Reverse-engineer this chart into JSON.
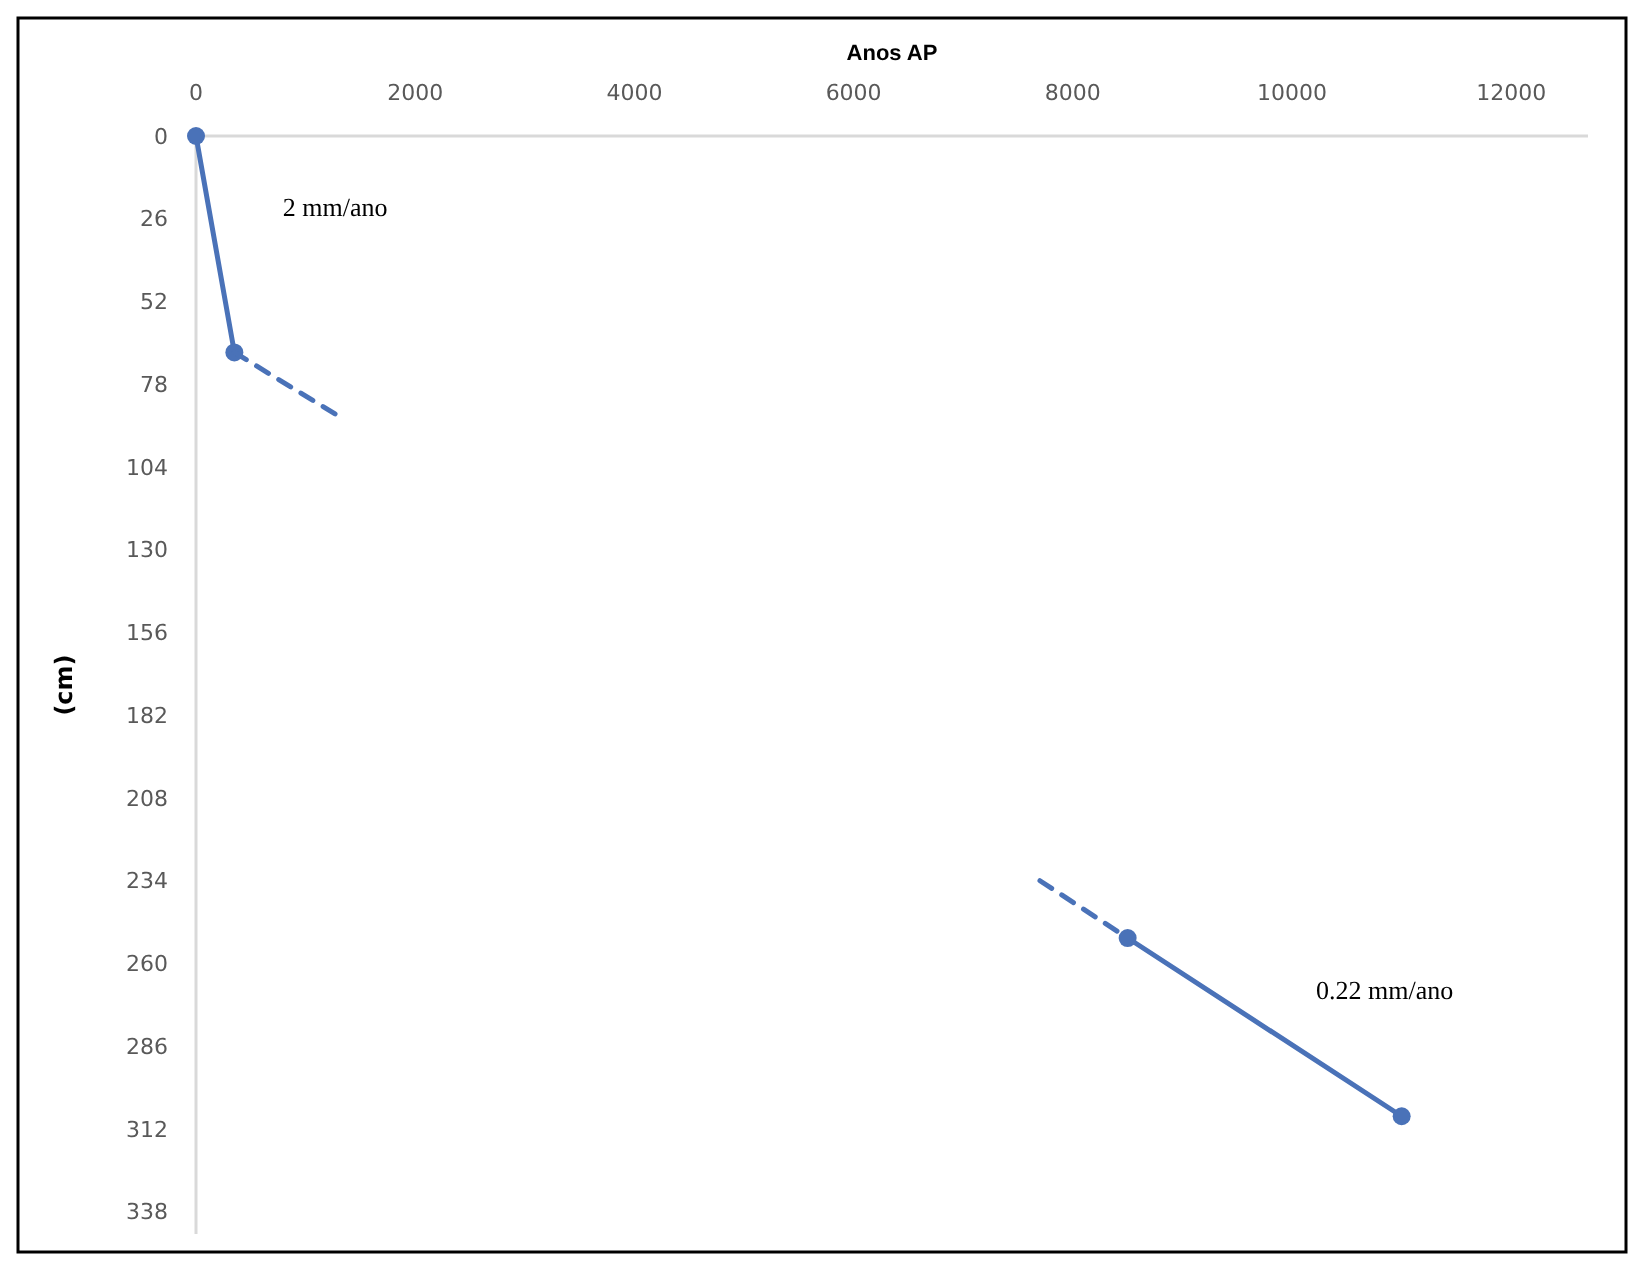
{
  "chart_data": {
    "type": "line",
    "xlabel": "Anos AP",
    "ylabel": "(cm)",
    "xlim": [
      0,
      12700
    ],
    "ylim": [
      345,
      0
    ],
    "xticks": [
      0,
      2000,
      4000,
      6000,
      8000,
      10000,
      12000
    ],
    "yticks": [
      0,
      26,
      52,
      78,
      104,
      130,
      156,
      182,
      208,
      234,
      260,
      286,
      312,
      338
    ],
    "grid": false,
    "series": [
      {
        "color": "#4a72b8",
        "x": [
          0,
          350
        ],
        "values": [
          0,
          68
        ],
        "marker": "circle",
        "line_style": "solid"
      },
      {
        "color": "#4a72b8",
        "x": [
          350,
          1300
        ],
        "values": [
          68,
          88
        ],
        "line_style": "dashed"
      },
      {
        "color": "#4a72b8",
        "x": [
          7700,
          8500
        ],
        "values": [
          234,
          252
        ],
        "line_style": "dashed"
      },
      {
        "color": "#4a72b8",
        "x": [
          8500,
          11000
        ],
        "values": [
          252,
          308
        ],
        "marker": "circle",
        "line_style": "solid"
      }
    ],
    "annotations": [
      "2 mm/ano",
      "0.22 mm/ano"
    ]
  }
}
